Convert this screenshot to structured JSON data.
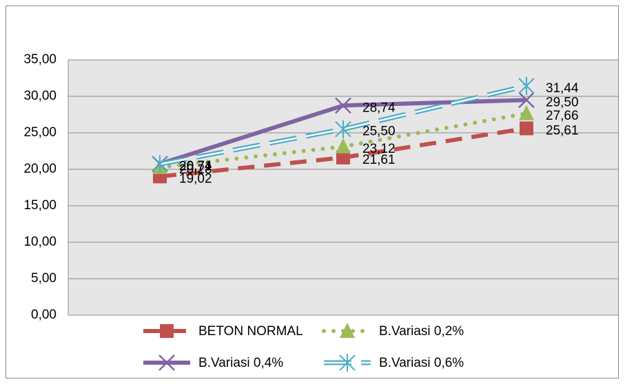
{
  "chart_data": {
    "type": "line",
    "categories": [
      null,
      null,
      null
    ],
    "series": [
      {
        "name": "BETON NORMAL",
        "color": "#c0504d",
        "line_style": "dash",
        "marker": "square",
        "values": [
          19.02,
          21.61,
          25.61
        ],
        "value_labels": [
          "19,02",
          "21,61",
          "25,61"
        ]
      },
      {
        "name": "B.Variasi 0,2%",
        "color": "#9bbb59",
        "line_style": "dot",
        "marker": "triangle",
        "values": [
          20.28,
          23.12,
          27.66
        ],
        "value_labels": [
          "20,28",
          "23,12",
          "27,66"
        ]
      },
      {
        "name": "B.Variasi 0,4%",
        "color": "#8064a2",
        "line_style": "solid",
        "marker": "x",
        "values": [
          20.74,
          28.74,
          29.5
        ],
        "value_labels": [
          "20,74",
          "28,74",
          "29,50"
        ]
      },
      {
        "name": "B.Variasi 0,6%",
        "color": "#4bacc6",
        "line_style": "double-dash",
        "marker": "star",
        "values": [
          20.71,
          25.5,
          31.44
        ],
        "value_labels": [
          "20,71",
          "25,50",
          "31,44"
        ]
      }
    ],
    "ylim": [
      0,
      35
    ],
    "yticks": [
      {
        "value": 0,
        "label": "0,00"
      },
      {
        "value": 5,
        "label": "5,00"
      },
      {
        "value": 10,
        "label": "10,00"
      },
      {
        "value": 15,
        "label": "15,00"
      },
      {
        "value": 20,
        "label": "20,00"
      },
      {
        "value": 25,
        "label": "25,00"
      },
      {
        "value": 30,
        "label": "30,00"
      },
      {
        "value": 35,
        "label": "35,00"
      }
    ],
    "grid": true,
    "legend": "bottom"
  }
}
